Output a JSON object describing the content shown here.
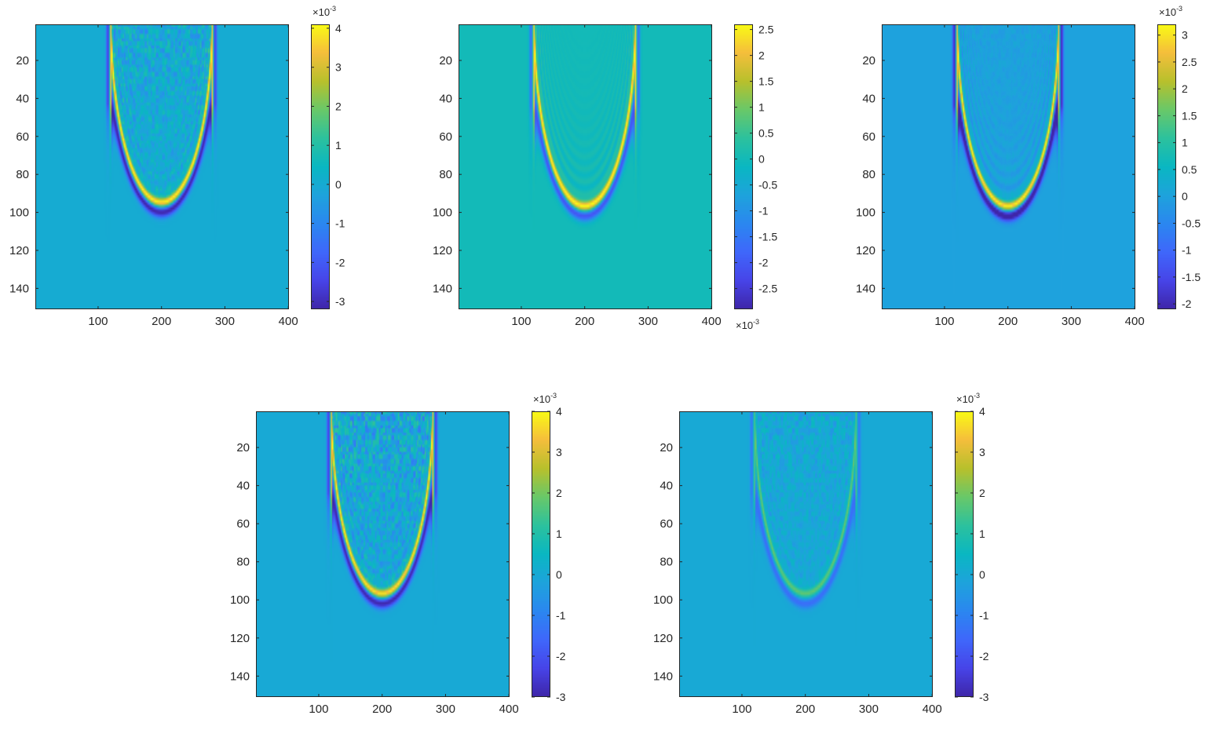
{
  "chart_data": [
    {
      "type": "heatmap",
      "id": "panel-1",
      "x_ticks": [
        100,
        200,
        300,
        400
      ],
      "y_ticks": [
        20,
        40,
        60,
        80,
        100,
        120,
        140
      ],
      "xlim": [
        1,
        401
      ],
      "ylim": [
        1,
        151
      ],
      "y_reversed": true,
      "colorbar": {
        "range": [
          -0.0032,
          0.0041
        ],
        "ticks": [
          -3,
          -2,
          -1,
          0,
          1,
          2,
          3,
          4
        ],
        "tick_labels": [
          "-3",
          "-2",
          "-1",
          "0",
          "1",
          "2",
          "3",
          "4"
        ],
        "exponent_base": "×10",
        "exponent": "-3",
        "exponent_position": "top"
      },
      "background_value": 0.0,
      "wavefront": {
        "center_x": 200,
        "apex_depth": 95,
        "half_width_top": 80,
        "amplitude": 0.004
      },
      "interior_noise": 0.7
    },
    {
      "type": "heatmap",
      "id": "panel-2",
      "x_ticks": [
        100,
        200,
        300,
        400
      ],
      "y_ticks": [
        20,
        40,
        60,
        80,
        100,
        120,
        140
      ],
      "xlim": [
        1,
        401
      ],
      "ylim": [
        1,
        151
      ],
      "y_reversed": true,
      "colorbar": {
        "range": [
          -0.0029,
          0.0026
        ],
        "ticks": [
          -2.5,
          -2,
          -1.5,
          -1,
          -0.5,
          0,
          0.5,
          1,
          1.5,
          2,
          2.5
        ],
        "tick_labels": [
          "-2.5",
          "-2",
          "-1.5",
          "-1",
          "-0.5",
          "0",
          "0.5",
          "1",
          "1.5",
          "2",
          "2.5"
        ],
        "exponent_base": "×10",
        "exponent": "-3",
        "exponent_position": "bottom"
      },
      "background_value": 0.0,
      "wavefront": {
        "center_x": 200,
        "apex_depth": 97,
        "half_width_top": 80,
        "amplitude": 0.0026
      },
      "interior_noise": 0.0
    },
    {
      "type": "heatmap",
      "id": "panel-3",
      "x_ticks": [
        100,
        200,
        300,
        400
      ],
      "y_ticks": [
        20,
        40,
        60,
        80,
        100,
        120,
        140
      ],
      "xlim": [
        1,
        401
      ],
      "ylim": [
        1,
        151
      ],
      "y_reversed": true,
      "colorbar": {
        "range": [
          -0.0021,
          0.0032
        ],
        "ticks": [
          -2,
          -1.5,
          -1,
          -0.5,
          0,
          0.5,
          1,
          1.5,
          2,
          2.5,
          3
        ],
        "tick_labels": [
          "-2",
          "-1.5",
          "-1",
          "-0.5",
          "0",
          "0.5",
          "1",
          "1.5",
          "2",
          "2.5",
          "3"
        ],
        "exponent_base": "×10",
        "exponent": "-3",
        "exponent_position": "top"
      },
      "background_value": 0.0,
      "wavefront": {
        "center_x": 200,
        "apex_depth": 97,
        "half_width_top": 80,
        "amplitude": 0.0031
      },
      "interior_noise": 0.15
    },
    {
      "type": "heatmap",
      "id": "panel-4",
      "x_ticks": [
        100,
        200,
        300,
        400
      ],
      "y_ticks": [
        20,
        40,
        60,
        80,
        100,
        120,
        140
      ],
      "xlim": [
        1,
        401
      ],
      "ylim": [
        1,
        151
      ],
      "y_reversed": true,
      "colorbar": {
        "range": [
          -0.003,
          0.004
        ],
        "ticks": [
          -3,
          -2,
          -1,
          0,
          1,
          2,
          3,
          4
        ],
        "tick_labels": [
          "-3",
          "-2",
          "-1",
          "0",
          "1",
          "2",
          "3",
          "4"
        ],
        "exponent_base": "×10",
        "exponent": "-3",
        "exponent_position": "top"
      },
      "background_value": 0.0,
      "wavefront": {
        "center_x": 200,
        "apex_depth": 97,
        "half_width_top": 80,
        "amplitude": 0.0037
      },
      "interior_noise": 1.0
    },
    {
      "type": "heatmap",
      "id": "panel-5",
      "x_ticks": [
        100,
        200,
        300,
        400
      ],
      "y_ticks": [
        20,
        40,
        60,
        80,
        100,
        120,
        140
      ],
      "xlim": [
        1,
        401
      ],
      "ylim": [
        1,
        151
      ],
      "y_reversed": true,
      "colorbar": {
        "range": [
          -0.003,
          0.004
        ],
        "ticks": [
          -3,
          -2,
          -1,
          0,
          1,
          2,
          3,
          4
        ],
        "tick_labels": [
          "-3",
          "-2",
          "-1",
          "0",
          "1",
          "2",
          "3",
          "4"
        ],
        "exponent_base": "×10",
        "exponent": "-3",
        "exponent_position": "top"
      },
      "background_value": 0.0,
      "wavefront": {
        "center_x": 200,
        "apex_depth": 97,
        "half_width_top": 80,
        "amplitude": 0.0018
      },
      "interior_noise": 1.0
    }
  ],
  "colormap": {
    "name": "parula",
    "stops": [
      "#3e26a8",
      "#4744e8",
      "#3f67fb",
      "#2b87f0",
      "#1ea3dc",
      "#0ab7c2",
      "#2cc19e",
      "#69c869",
      "#b8c02c",
      "#f5be3c",
      "#f9fb15"
    ]
  }
}
